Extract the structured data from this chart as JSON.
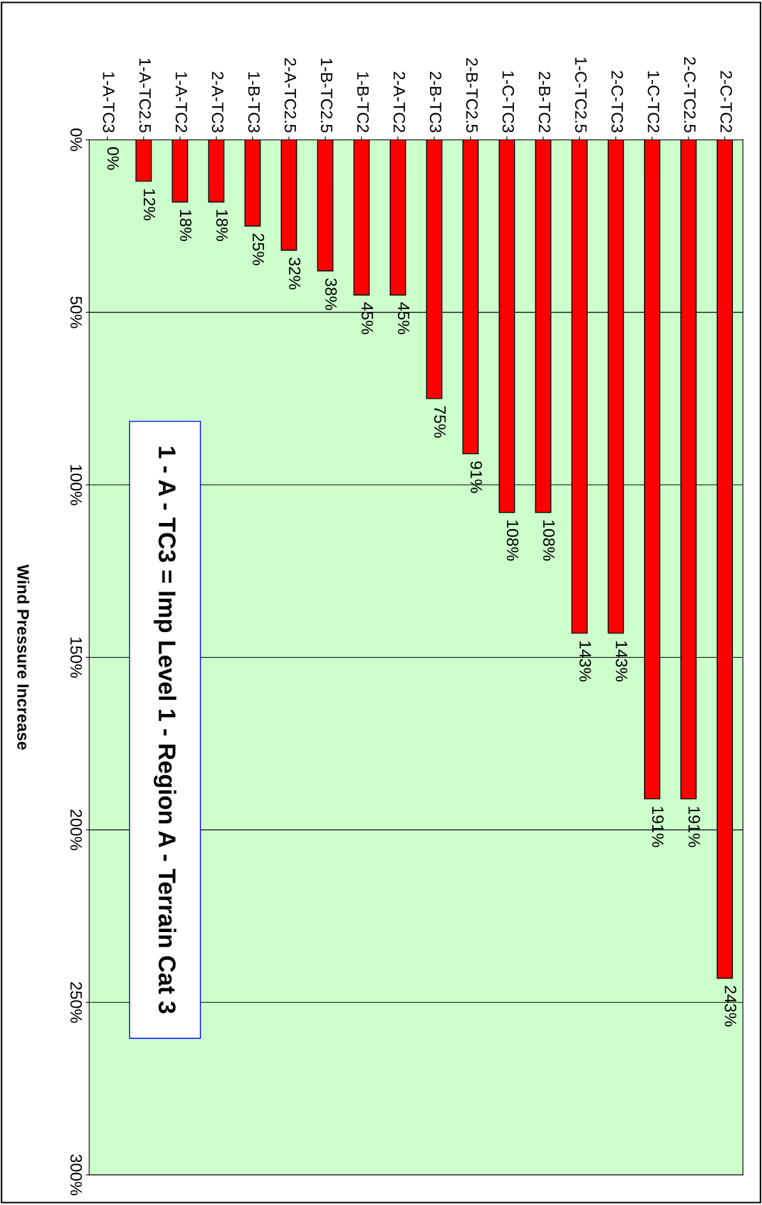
{
  "chart_data": {
    "type": "bar",
    "ylabel": "Wind Pressure Increase",
    "categories": [
      "1-A-TC3",
      "1-A-TC2.5",
      "1-A-TC2",
      "2-A-TC3",
      "1-B-TC3",
      "2-A-TC2.5",
      "1-B-TC2.5",
      "1-B-TC2",
      "2-A-TC2",
      "2-B-TC3",
      "2-B-TC2.5",
      "1-C-TC3",
      "2-B-TC2",
      "1-C-TC2.5",
      "2-C-TC3",
      "1-C-TC2",
      "2-C-TC2.5",
      "2-C-TC2"
    ],
    "values": [
      0,
      12,
      18,
      18,
      25,
      32,
      38,
      45,
      45,
      75,
      91,
      108,
      108,
      143,
      143,
      191,
      191,
      243
    ],
    "value_labels": [
      "0%",
      "12%",
      "18%",
      "18%",
      "25%",
      "32%",
      "38%",
      "45%",
      "45%",
      "75%",
      "91%",
      "108%",
      "108%",
      "143%",
      "143%",
      "191%",
      "191%",
      "243%"
    ],
    "color": "#ff0000",
    "ylim": [
      300,
      0
    ],
    "yticks": [
      {
        "value": 0,
        "label": "0%"
      },
      {
        "value": 50,
        "label": "50%"
      },
      {
        "value": 100,
        "label": "100%"
      },
      {
        "value": 150,
        "label": "150%"
      },
      {
        "value": 200,
        "label": "200%"
      },
      {
        "value": 250,
        "label": "250%"
      },
      {
        "value": 300,
        "label": "300%"
      }
    ],
    "grid": "y",
    "legend": false,
    "annotations": [
      "1 - A - TC3 = Imp Level 1 - Region A - Terrain Cat 3"
    ]
  }
}
